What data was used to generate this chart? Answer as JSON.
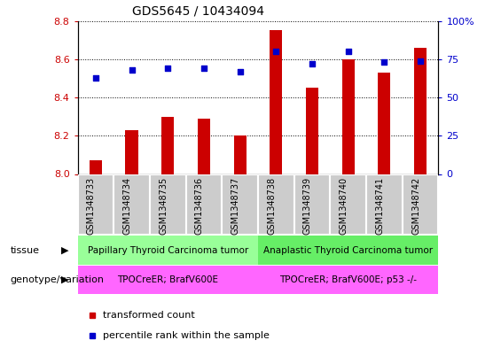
{
  "title": "GDS5645 / 10434094",
  "samples": [
    "GSM1348733",
    "GSM1348734",
    "GSM1348735",
    "GSM1348736",
    "GSM1348737",
    "GSM1348738",
    "GSM1348739",
    "GSM1348740",
    "GSM1348741",
    "GSM1348742"
  ],
  "bar_values": [
    8.07,
    8.23,
    8.3,
    8.29,
    8.2,
    8.75,
    8.45,
    8.6,
    8.53,
    8.66
  ],
  "percentile_values": [
    63,
    68,
    69,
    69,
    67,
    80,
    72,
    80,
    73,
    74
  ],
  "bar_color": "#cc0000",
  "dot_color": "#0000cc",
  "ylim_left": [
    8.0,
    8.8
  ],
  "ylim_right": [
    0,
    100
  ],
  "yticks_left": [
    8.0,
    8.2,
    8.4,
    8.6,
    8.8
  ],
  "yticks_right": [
    0,
    25,
    50,
    75,
    100
  ],
  "tissue_labels": [
    {
      "text": "Papillary Thyroid Carcinoma tumor",
      "start": 0,
      "end": 4,
      "color": "#99ff99"
    },
    {
      "text": "Anaplastic Thyroid Carcinoma tumor",
      "start": 5,
      "end": 9,
      "color": "#66ee66"
    }
  ],
  "genotype_labels": [
    {
      "text": "TPOCreER; BrafV600E",
      "start": 0,
      "end": 4,
      "color": "#ff66ff"
    },
    {
      "text": "TPOCreER; BrafV600E; p53 -/-",
      "start": 5,
      "end": 9,
      "color": "#ff66ff"
    }
  ],
  "row_label_tissue": "tissue",
  "row_label_genotype": "genotype/variation",
  "legend_red": "transformed count",
  "legend_blue": "percentile rank within the sample",
  "bar_color_hex": "#cc0000",
  "dot_color_hex": "#0000cc",
  "xtick_bg": "#cccccc",
  "title_fontsize": 10,
  "tick_fontsize": 8,
  "label_fontsize": 8
}
